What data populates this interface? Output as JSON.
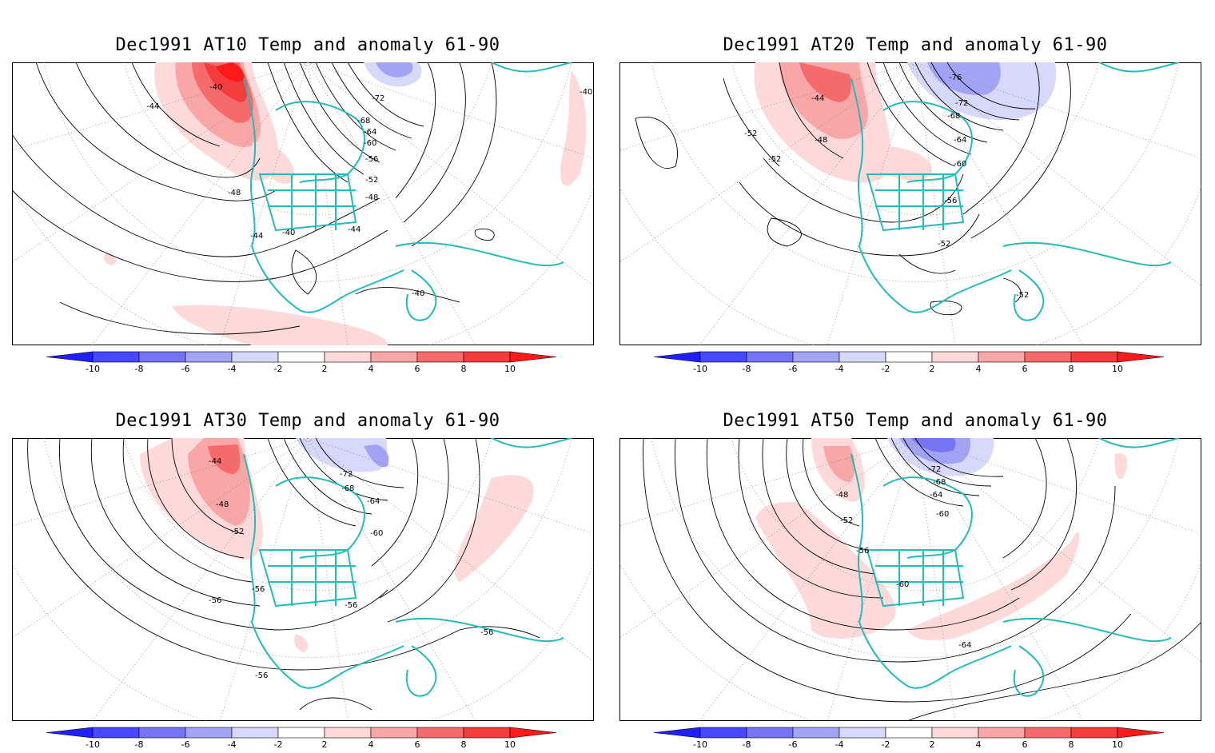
{
  "panels": [
    {
      "title": "Dec1991 AT10 Temp and anomaly 61-90",
      "contour_labels": [
        "-40",
        "-44",
        "-72",
        "-68",
        "-64",
        "-60",
        "-56",
        "-52",
        "-48",
        "-48",
        "-44",
        "-40",
        "-44",
        "-40",
        "-40"
      ]
    },
    {
      "title": "Dec1991 AT20 Temp and anomaly 61-90",
      "contour_labels": [
        "-76",
        "-44",
        "-72",
        "-68",
        "-52",
        "-48",
        "-64",
        "-52",
        "-60",
        "-56",
        "-52",
        "-52"
      ]
    },
    {
      "title": "Dec1991 AT30 Temp and anomaly 61-90",
      "contour_labels": [
        "-44",
        "-72",
        "-68",
        "-48",
        "-64",
        "-52",
        "-60",
        "-56",
        "-56",
        "-56",
        "-56",
        "-56"
      ]
    },
    {
      "title": "Dec1991 AT50 Temp and anomaly 61-90",
      "contour_labels": [
        "-72",
        "-68",
        "-48",
        "-64",
        "-60",
        "-52",
        "-56",
        "-60",
        "-64"
      ]
    }
  ],
  "colorbar": {
    "labels": [
      "-10",
      "-8",
      "-6",
      "-4",
      "-2",
      "2",
      "4",
      "6",
      "8",
      "10"
    ],
    "colors": [
      "#1f1fff",
      "#4848ff",
      "#7474f5",
      "#a3a3f5",
      "#d8d8fa",
      "#ffffff",
      "#fdd9d9",
      "#f9a6a6",
      "#f56b6b",
      "#f53c3c",
      "#ff1a1a"
    ]
  },
  "colors": {
    "coastline": "#22bcbc",
    "contour": "#000000",
    "gridline": "#888888"
  }
}
